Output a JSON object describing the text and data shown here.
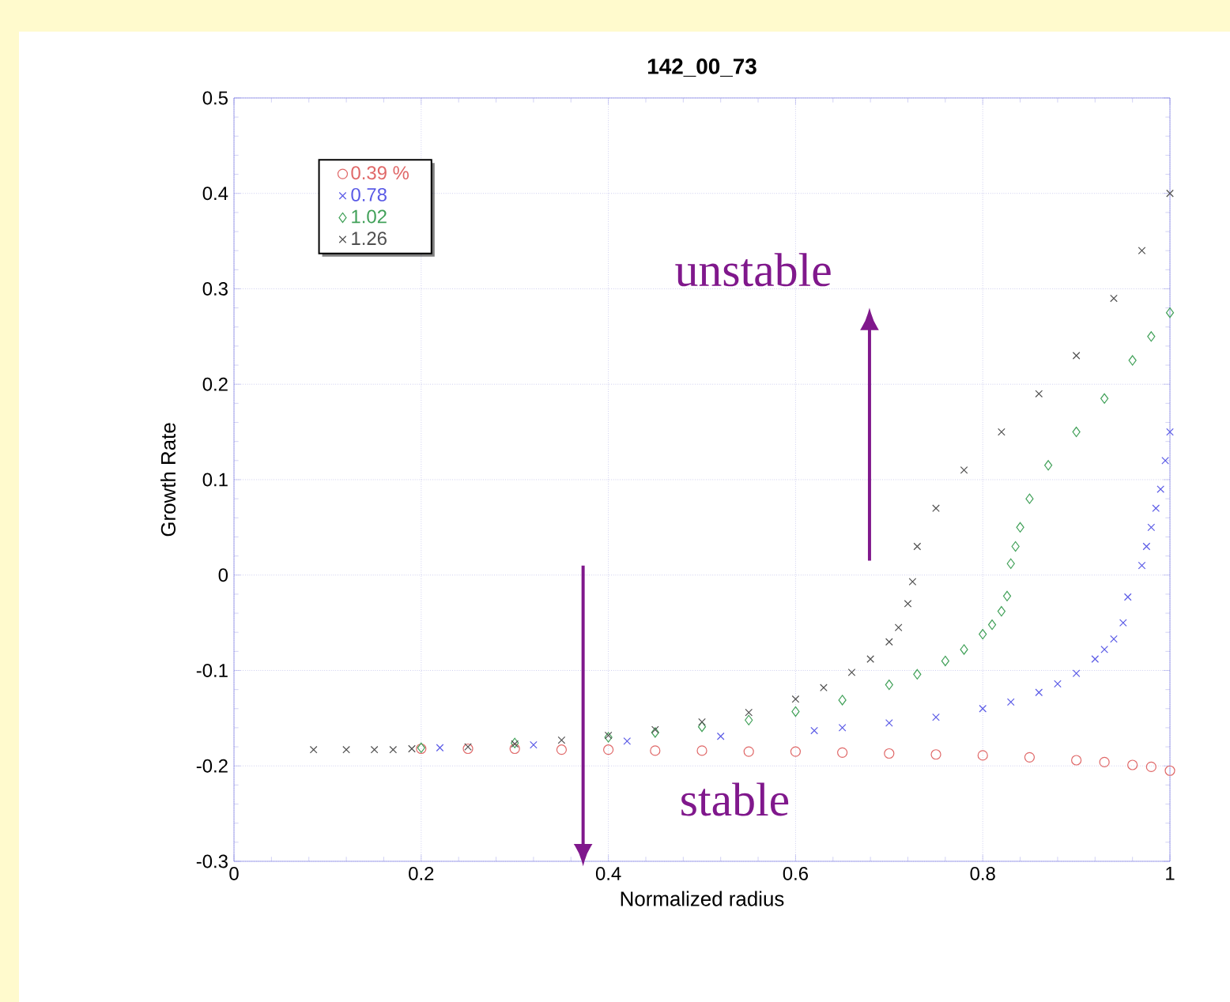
{
  "chart_data": {
    "type": "scatter",
    "title": "142_00_73",
    "xlabel": "Normalized radius",
    "ylabel": "Growth Rate",
    "xlim": [
      0,
      1
    ],
    "ylim": [
      -0.3,
      0.5
    ],
    "xticks": [
      0,
      0.2,
      0.4,
      0.6,
      0.8,
      1
    ],
    "yticks": [
      -0.3,
      -0.2,
      -0.1,
      0,
      0.1,
      0.2,
      0.3,
      0.4,
      0.5
    ],
    "grid": true,
    "legend": "top left",
    "series": [
      {
        "name": "0.39 %",
        "color": "#e06868",
        "marker": "circle",
        "x": [
          0.2,
          0.25,
          0.3,
          0.35,
          0.4,
          0.45,
          0.5,
          0.55,
          0.6,
          0.65,
          0.7,
          0.75,
          0.8,
          0.85,
          0.9,
          0.93,
          0.96,
          0.98,
          1.0
        ],
        "values": [
          -0.182,
          -0.182,
          -0.182,
          -0.183,
          -0.183,
          -0.184,
          -0.184,
          -0.185,
          -0.185,
          -0.186,
          -0.187,
          -0.188,
          -0.189,
          -0.191,
          -0.194,
          -0.196,
          -0.199,
          -0.201,
          -0.205
        ]
      },
      {
        "name": "0.78",
        "color": "#5a5ae6",
        "marker": "cross",
        "x": [
          0.22,
          0.32,
          0.42,
          0.52,
          0.62,
          0.65,
          0.7,
          0.75,
          0.8,
          0.83,
          0.86,
          0.88,
          0.9,
          0.92,
          0.93,
          0.94,
          0.95,
          0.955,
          0.97,
          0.975,
          0.98,
          0.985,
          0.99,
          0.995,
          1.0
        ],
        "values": [
          -0.181,
          -0.178,
          -0.174,
          -0.169,
          -0.163,
          -0.16,
          -0.155,
          -0.149,
          -0.14,
          -0.133,
          -0.123,
          -0.114,
          -0.103,
          -0.088,
          -0.078,
          -0.067,
          -0.05,
          -0.023,
          0.01,
          0.03,
          0.05,
          0.07,
          0.09,
          0.12,
          0.15
        ]
      },
      {
        "name": "1.02",
        "color": "#40a058",
        "marker": "diamond",
        "x": [
          0.2,
          0.3,
          0.4,
          0.45,
          0.5,
          0.55,
          0.6,
          0.65,
          0.7,
          0.73,
          0.76,
          0.78,
          0.8,
          0.81,
          0.82,
          0.826,
          0.83,
          0.835,
          0.84,
          0.85,
          0.87,
          0.9,
          0.93,
          0.96,
          0.98,
          1.0
        ],
        "values": [
          -0.181,
          -0.176,
          -0.17,
          -0.165,
          -0.159,
          -0.152,
          -0.143,
          -0.131,
          -0.115,
          -0.104,
          -0.09,
          -0.078,
          -0.062,
          -0.052,
          -0.038,
          -0.022,
          0.012,
          0.03,
          0.05,
          0.08,
          0.115,
          0.15,
          0.185,
          0.225,
          0.25,
          0.275
        ]
      },
      {
        "name": "1.26",
        "color": "#505050",
        "marker": "cross",
        "x": [
          0.085,
          0.12,
          0.15,
          0.17,
          0.19,
          0.25,
          0.3,
          0.35,
          0.4,
          0.45,
          0.5,
          0.55,
          0.6,
          0.63,
          0.66,
          0.68,
          0.7,
          0.71,
          0.72,
          0.725,
          0.73,
          0.75,
          0.78,
          0.82,
          0.86,
          0.9,
          0.94,
          0.97,
          1.0
        ],
        "values": [
          -0.183,
          -0.183,
          -0.183,
          -0.183,
          -0.182,
          -0.18,
          -0.177,
          -0.173,
          -0.168,
          -0.162,
          -0.154,
          -0.144,
          -0.13,
          -0.118,
          -0.102,
          -0.088,
          -0.07,
          -0.055,
          -0.03,
          -0.007,
          0.03,
          0.07,
          0.11,
          0.15,
          0.19,
          0.23,
          0.29,
          0.34,
          0.4
        ]
      }
    ],
    "annotations": [
      "unstable",
      "stable"
    ]
  }
}
